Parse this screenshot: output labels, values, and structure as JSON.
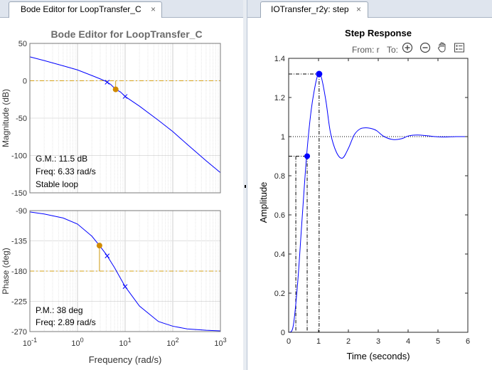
{
  "tabs": {
    "left": {
      "label": "Bode Editor for LoopTransfer_C",
      "close": "×"
    },
    "right": {
      "label": "IOTransfer_r2y: step",
      "close": "×"
    }
  },
  "bode": {
    "title": "Bode Editor for LoopTransfer_C",
    "magnitude_ylabel": "Magnitude (dB)",
    "phase_ylabel": "Phase (deg)",
    "xlabel": "Frequency (rad/s)",
    "gm_text": "G.M.: 11.5 dB",
    "gm_freq_text": "Freq: 6.33 rad/s",
    "stability_text": "Stable loop",
    "pm_text": "P.M.: 38 deg",
    "pm_freq_text": "Freq: 2.89 rad/s",
    "mag_ticks": [
      "50",
      "0",
      "-50",
      "-100",
      "-150"
    ],
    "phase_ticks": [
      "-90",
      "-135",
      "-180",
      "-225",
      "-270"
    ],
    "freq_tick_base": "10",
    "freq_tick_exps": [
      "-1",
      "0",
      "1",
      "2",
      "3"
    ]
  },
  "step": {
    "title": "Step Response",
    "toolbar": {
      "from_label": "From: r",
      "to_label": "To:"
    },
    "ticks_y": [
      "1.4",
      "1.2",
      "1",
      "0.8",
      "0.6",
      "0.4",
      "0.2",
      "0"
    ],
    "ticks_x": [
      "0",
      "1",
      "2",
      "3",
      "4",
      "5",
      "6"
    ]
  },
  "colors": {
    "response_line": "#0000ff",
    "marker_orange": "#d08a00",
    "margin_line": "#d4a017",
    "axis": "#262626",
    "grid": "#d9d9d9"
  },
  "icons": {
    "zoom_in": "zoom-in-icon",
    "zoom_out": "zoom-out-icon",
    "pan": "pan-hand-icon",
    "legend": "legend-icon"
  },
  "chart_data": [
    {
      "type": "line",
      "name": "bode-magnitude",
      "title": "Bode Editor for LoopTransfer_C",
      "xlabel": "Frequency (rad/s)",
      "ylabel": "Magnitude (dB)",
      "xscale": "log",
      "xlim": [
        0.1,
        1000
      ],
      "ylim": [
        -150,
        50
      ],
      "grid": true,
      "x": [
        0.1,
        0.2,
        0.5,
        1,
        2,
        3,
        4,
        5,
        6.33,
        8,
        10,
        20,
        50,
        100,
        200,
        500,
        1000
      ],
      "y": [
        32,
        27,
        20,
        14.5,
        7,
        2.5,
        -1,
        -5,
        -11.5,
        -15,
        -21,
        -34,
        -53,
        -68,
        -85,
        -107,
        -123
      ],
      "markers": [
        {
          "x": 6.33,
          "y": -11.5,
          "kind": "gain-margin"
        }
      ],
      "pole_markers_x": [
        4.2,
        10
      ]
    },
    {
      "type": "line",
      "name": "bode-phase",
      "xlabel": "Frequency (rad/s)",
      "ylabel": "Phase (deg)",
      "xscale": "log",
      "xlim": [
        0.1,
        1000
      ],
      "ylim": [
        -270,
        -90
      ],
      "grid": true,
      "x": [
        0.1,
        0.2,
        0.5,
        1,
        2,
        2.89,
        4,
        6,
        10,
        20,
        50,
        100,
        200,
        500,
        1000
      ],
      "y": [
        -92,
        -95,
        -101,
        -110,
        -128,
        -142,
        -155,
        -175,
        -203,
        -232,
        -255,
        -262,
        -266,
        -268,
        -269
      ],
      "markers": [
        {
          "x": 2.89,
          "y": -142,
          "kind": "phase-margin"
        }
      ],
      "pole_markers_x": [
        4.2,
        10
      ]
    },
    {
      "type": "line",
      "name": "step-response",
      "title": "Step Response",
      "xlabel": "Time (seconds)",
      "ylabel": "Amplitude",
      "xlim": [
        0,
        6
      ],
      "ylim": [
        0,
        1.4
      ],
      "grid": false,
      "reference_y": 1,
      "x": [
        0,
        0.15,
        0.3,
        0.45,
        0.6,
        0.75,
        0.9,
        1.0,
        1.1,
        1.25,
        1.4,
        1.6,
        1.8,
        2.0,
        2.2,
        2.4,
        2.6,
        2.8,
        2.95,
        3.2,
        3.5,
        3.8,
        4.0,
        4.3,
        4.6,
        4.9,
        5.2,
        5.6,
        6.0
      ],
      "y": [
        0,
        0.03,
        0.25,
        0.58,
        0.9,
        1.13,
        1.27,
        1.32,
        1.3,
        1.18,
        1.02,
        0.92,
        0.89,
        0.94,
        1.01,
        1.04,
        1.045,
        1.04,
        1.03,
        1.0,
        0.985,
        0.99,
        1.003,
        1.008,
        1.005,
        1.0,
        0.998,
        1.0,
        1.0
      ],
      "markers": [
        {
          "x": 0.62,
          "y": 0.9,
          "kind": "rise-time"
        },
        {
          "x": 1.02,
          "y": 1.32,
          "kind": "peak-response"
        }
      ],
      "settling_x": 0.24
    }
  ]
}
